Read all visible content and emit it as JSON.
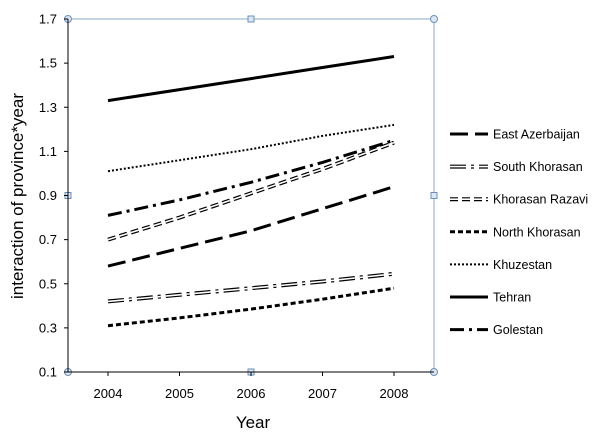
{
  "chart_data": {
    "type": "line",
    "x": [
      2004,
      2005,
      2006,
      2007,
      2008
    ],
    "xlabel": "Year",
    "ylabel": "interaction of province*year",
    "ylim": [
      0.1,
      1.7
    ],
    "yticks": [
      "0.1",
      "0.3",
      "0.5",
      "0.7",
      "0.9",
      "1.1",
      "1.3",
      "1.5",
      "1.7"
    ],
    "xticks": [
      "2004",
      "2005",
      "2006",
      "2007",
      "2008"
    ],
    "grid": false,
    "legend_position": "right",
    "series": [
      {
        "name": "East Azerbaijan",
        "style": "long-dash",
        "values": [
          0.58,
          0.66,
          0.74,
          0.84,
          0.94
        ]
      },
      {
        "name": "South Khorasan",
        "style": "hollow-dash-dot",
        "values": [
          0.42,
          0.45,
          0.48,
          0.51,
          0.545
        ]
      },
      {
        "name": "Khorasan Razavi",
        "style": "hollow-dash",
        "values": [
          0.7,
          0.8,
          0.91,
          1.02,
          1.14
        ]
      },
      {
        "name": "North Khorasan",
        "style": "short-dash",
        "values": [
          0.31,
          0.345,
          0.385,
          0.43,
          0.48
        ]
      },
      {
        "name": "Khuzestan",
        "style": "dotted",
        "values": [
          1.01,
          1.06,
          1.11,
          1.17,
          1.22
        ]
      },
      {
        "name": "Tehran",
        "style": "solid",
        "values": [
          1.33,
          1.38,
          1.43,
          1.48,
          1.53
        ]
      },
      {
        "name": "Golestan",
        "style": "dash-dot",
        "values": [
          0.81,
          0.88,
          0.96,
          1.05,
          1.15
        ]
      }
    ]
  }
}
